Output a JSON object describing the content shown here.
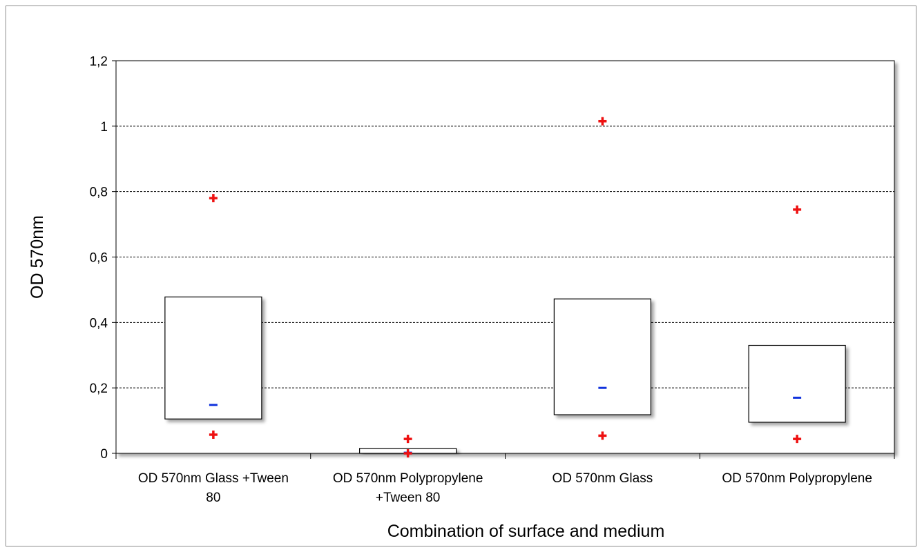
{
  "chart_data": {
    "type": "box",
    "title": "",
    "xlabel": "Combination of surface and medium",
    "ylabel": "OD 570nm",
    "ylim": [
      0,
      1.2
    ],
    "yticks": [
      {
        "value": 0,
        "label": "0"
      },
      {
        "value": 0.2,
        "label": "0,2"
      },
      {
        "value": 0.4,
        "label": "0,4"
      },
      {
        "value": 0.6,
        "label": "0,6"
      },
      {
        "value": 0.8,
        "label": "0,8"
      },
      {
        "value": 1.0,
        "label": "1"
      },
      {
        "value": 1.2,
        "label": "1,2"
      }
    ],
    "grid": true,
    "categories": [
      {
        "label_lines": [
          "OD 570nm Glass +Tween",
          "80"
        ],
        "q1": 0.105,
        "q3": 0.478,
        "mean": 0.148,
        "min": 0.057,
        "max": 0.78
      },
      {
        "label_lines": [
          "OD 570nm Polypropylene",
          "+Tween 80"
        ],
        "q1": 0.0,
        "q3": 0.015,
        "mean": 0.002,
        "min": 0.0,
        "max": 0.044
      },
      {
        "label_lines": [
          "OD 570nm Glass"
        ],
        "q1": 0.118,
        "q3": 0.472,
        "mean": 0.2,
        "min": 0.054,
        "max": 1.015
      },
      {
        "label_lines": [
          "OD 570nm Polypropylene"
        ],
        "q1": 0.095,
        "q3": 0.33,
        "mean": 0.17,
        "min": 0.044,
        "max": 0.745
      }
    ],
    "colors": {
      "extreme_marker": "#ee1111",
      "mean_marker": "#1133dd",
      "grid": "#000000",
      "box_edge": "#000000"
    }
  }
}
